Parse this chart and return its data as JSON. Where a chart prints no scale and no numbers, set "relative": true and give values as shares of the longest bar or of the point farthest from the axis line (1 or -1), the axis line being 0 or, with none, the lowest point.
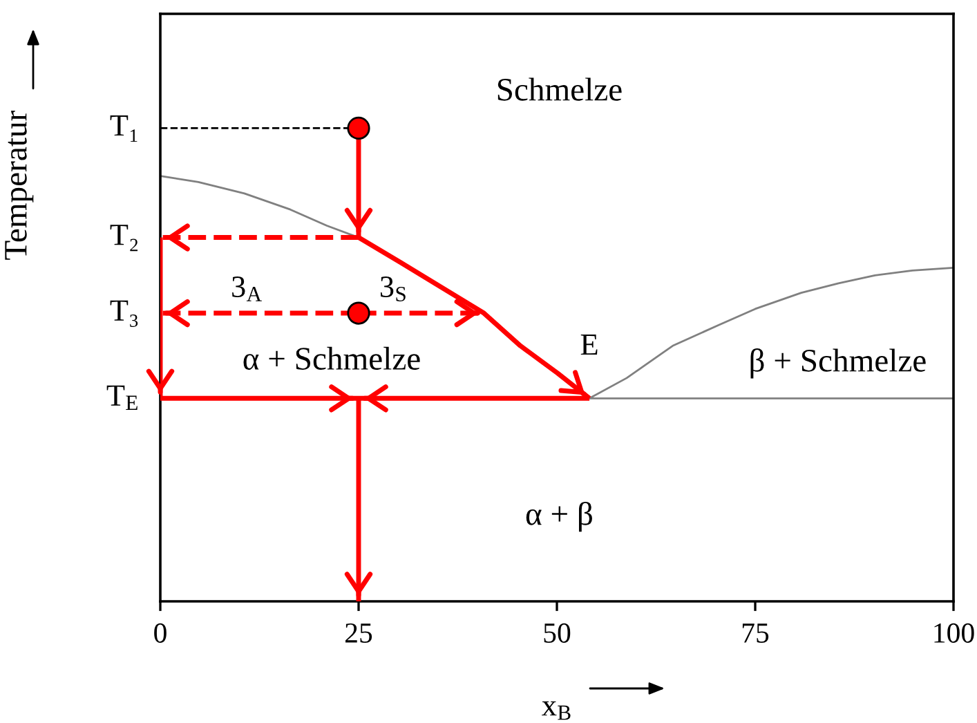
{
  "chart_data": {
    "type": "line",
    "xlabel": "x$_{B}$",
    "ylabel": "Temperatur",
    "relative": true,
    "xlim": [
      0,
      100
    ],
    "xticks": [
      0,
      25,
      50,
      75,
      100
    ],
    "series": [
      {
        "color": "#808080",
        "x": [
          0,
          4.8,
          10.6,
          16.4,
          21.0,
          25
        ],
        "values": [
          0.899,
          0.886,
          0.862,
          0.828,
          0.794,
          0.769
        ]
      },
      {
        "color": "#808080",
        "x": [
          54.1,
          58.8,
          64.6,
          70.4,
          75.0,
          80.8,
          85.5,
          90.1,
          94.8,
          100
        ],
        "values": [
          0.429,
          0.472,
          0.54,
          0.584,
          0.618,
          0.652,
          0.672,
          0.689,
          0.699,
          0.705
        ]
      },
      {
        "color": "#808080",
        "x": [
          54.1,
          100
        ],
        "values": [
          0.429,
          0.429
        ]
      },
      {
        "color": "#000000",
        "line_style": "dashed",
        "x": [
          0,
          25
        ],
        "values": [
          1.0,
          1.0
        ]
      },
      {
        "color": "#ff0000",
        "x": [
          25,
          25
        ],
        "values": [
          1.0,
          0.769
        ]
      },
      {
        "color": "#ff0000",
        "line_style": "dashed",
        "x": [
          25,
          0
        ],
        "values": [
          0.769,
          0.769
        ]
      },
      {
        "color": "#ff0000",
        "x": [
          0,
          0
        ],
        "values": [
          0.769,
          0.429
        ]
      },
      {
        "color": "#ff0000",
        "line_style": "dashed",
        "x": [
          25,
          0
        ],
        "values": [
          0.609,
          0.609
        ]
      },
      {
        "color": "#ff0000",
        "line_style": "dashed",
        "x": [
          25,
          40.8
        ],
        "values": [
          0.609,
          0.609
        ]
      },
      {
        "color": "#ff0000",
        "x": [
          25,
          30.3,
          36.1,
          40.8,
          45.4,
          50.1,
          54.1
        ],
        "values": [
          0.769,
          0.716,
          0.657,
          0.609,
          0.54,
          0.482,
          0.429
        ]
      },
      {
        "color": "#ff0000",
        "x": [
          0,
          25,
          54.1
        ],
        "values": [
          0.429,
          0.429,
          0.429
        ]
      },
      {
        "color": "#ff0000",
        "x": [
          25,
          25
        ],
        "values": [
          0.429,
          0
        ]
      },
      {
        "type": "scatter",
        "color": "#ff0000",
        "marker": "circle",
        "x": [
          25,
          25
        ],
        "values": [
          1.0,
          0.609
        ]
      }
    ],
    "annotations": [
      {
        "text": "T₁",
        "x": 0,
        "y": 1.0
      },
      {
        "text": "T₂",
        "x": 0,
        "y": 0.769
      },
      {
        "text": "T₃",
        "x": 0,
        "y": 0.609
      },
      {
        "text": "T$_{E}$",
        "x": 0,
        "y": 0.429
      },
      "Schmelze",
      {
        "text": "3$_{A}$",
        "x": 10.9,
        "y": 0.609
      },
      {
        "text": "3$_{S}$",
        "x": 29.4,
        "y": 0.609
      },
      "α + Schmelze",
      {
        "text": "E",
        "x": 54.1,
        "y": 0.429
      },
      "β + Schmelze",
      "α + β"
    ]
  }
}
